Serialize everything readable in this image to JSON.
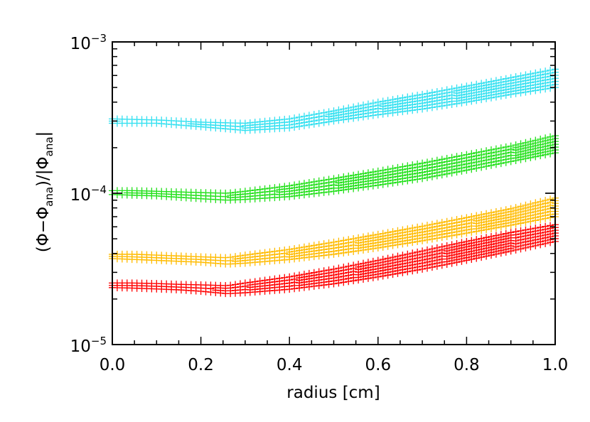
{
  "chart_data": {
    "type": "scatter",
    "title": "",
    "xlabel": "radius [cm]",
    "ylabel_parts": [
      "(Φ−Φ",
      "ana",
      ")/|Φ",
      "ana",
      "|"
    ],
    "xlim": [
      0.0,
      1.0
    ],
    "ylim": [
      1e-05,
      0.001
    ],
    "yscale": "log",
    "x_tick_labels": [
      "0.0",
      "0.2",
      "0.4",
      "0.6",
      "0.8",
      "1.0"
    ],
    "y_tick_labels": [
      {
        "base": "10",
        "exp": "−3",
        "value": 0.001
      },
      {
        "base": "10",
        "exp": "−4",
        "value": 0.0001
      },
      {
        "base": "10",
        "exp": "−5",
        "value": 1e-05
      }
    ],
    "marker": "+",
    "series": [
      {
        "name": "cyan",
        "color": "#33e0f0",
        "x": [
          0.0,
          0.1,
          0.2,
          0.3,
          0.4,
          0.5,
          0.6,
          0.7,
          0.8,
          0.9,
          1.0
        ],
        "lower": [
          0.00029,
          0.00029,
          0.000275,
          0.00026,
          0.00027,
          0.0003,
          0.00033,
          0.00036,
          0.0004,
          0.00045,
          0.0005
        ],
        "upper": [
          0.00031,
          0.000305,
          0.000295,
          0.00029,
          0.00031,
          0.00035,
          0.0004,
          0.00045,
          0.00051,
          0.00058,
          0.00066
        ]
      },
      {
        "name": "green",
        "color": "#22e01a",
        "x": [
          0.0,
          0.05,
          0.1,
          0.15,
          0.2,
          0.26,
          0.3,
          0.4,
          0.5,
          0.6,
          0.7,
          0.8,
          0.9,
          1.0
        ],
        "lower": [
          9.8e-05,
          9.7e-05,
          9.6e-05,
          9.4e-05,
          9.2e-05,
          9e-05,
          9.1e-05,
          9.5e-05,
          0.000103,
          0.000113,
          0.000125,
          0.000142,
          0.000162,
          0.000185
        ],
        "upper": [
          0.000104,
          0.000104,
          0.000103,
          0.000102,
          0.000101,
          0.0001,
          0.000103,
          0.000112,
          0.000125,
          0.00014,
          0.000158,
          0.00018,
          0.000205,
          0.00024
        ]
      },
      {
        "name": "orange",
        "color": "#ffbb00",
        "x": [
          0.0,
          0.05,
          0.1,
          0.15,
          0.2,
          0.26,
          0.3,
          0.4,
          0.5,
          0.6,
          0.7,
          0.8,
          0.9,
          1.0
        ],
        "lower": [
          3.7e-05,
          3.65e-05,
          3.6e-05,
          3.55e-05,
          3.5e-05,
          3.4e-05,
          3.45e-05,
          3.65e-05,
          3.95e-05,
          4.35e-05,
          4.85e-05,
          5.45e-05,
          6.15e-05,
          7e-05
        ],
        "upper": [
          3.95e-05,
          3.95e-05,
          3.9e-05,
          3.85e-05,
          3.8e-05,
          3.75e-05,
          3.9e-05,
          4.25e-05,
          4.75e-05,
          5.35e-05,
          6.05e-05,
          6.9e-05,
          7.9e-05,
          9.3e-05
        ]
      },
      {
        "name": "red",
        "color": "#ff0000",
        "x": [
          0.0,
          0.05,
          0.1,
          0.15,
          0.2,
          0.26,
          0.3,
          0.4,
          0.5,
          0.6,
          0.7,
          0.8,
          0.9,
          1.0
        ],
        "lower": [
          2.38e-05,
          2.36e-05,
          2.33e-05,
          2.3e-05,
          2.25e-05,
          2.17e-05,
          2.2e-05,
          2.32e-05,
          2.52e-05,
          2.8e-05,
          3.15e-05,
          3.6e-05,
          4.15e-05,
          4.8e-05
        ],
        "upper": [
          2.55e-05,
          2.55e-05,
          2.53e-05,
          2.5e-05,
          2.48e-05,
          2.45e-05,
          2.55e-05,
          2.8e-05,
          3.15e-05,
          3.6e-05,
          4.15e-05,
          4.8e-05,
          5.5e-05,
          6.2e-05
        ]
      }
    ]
  }
}
